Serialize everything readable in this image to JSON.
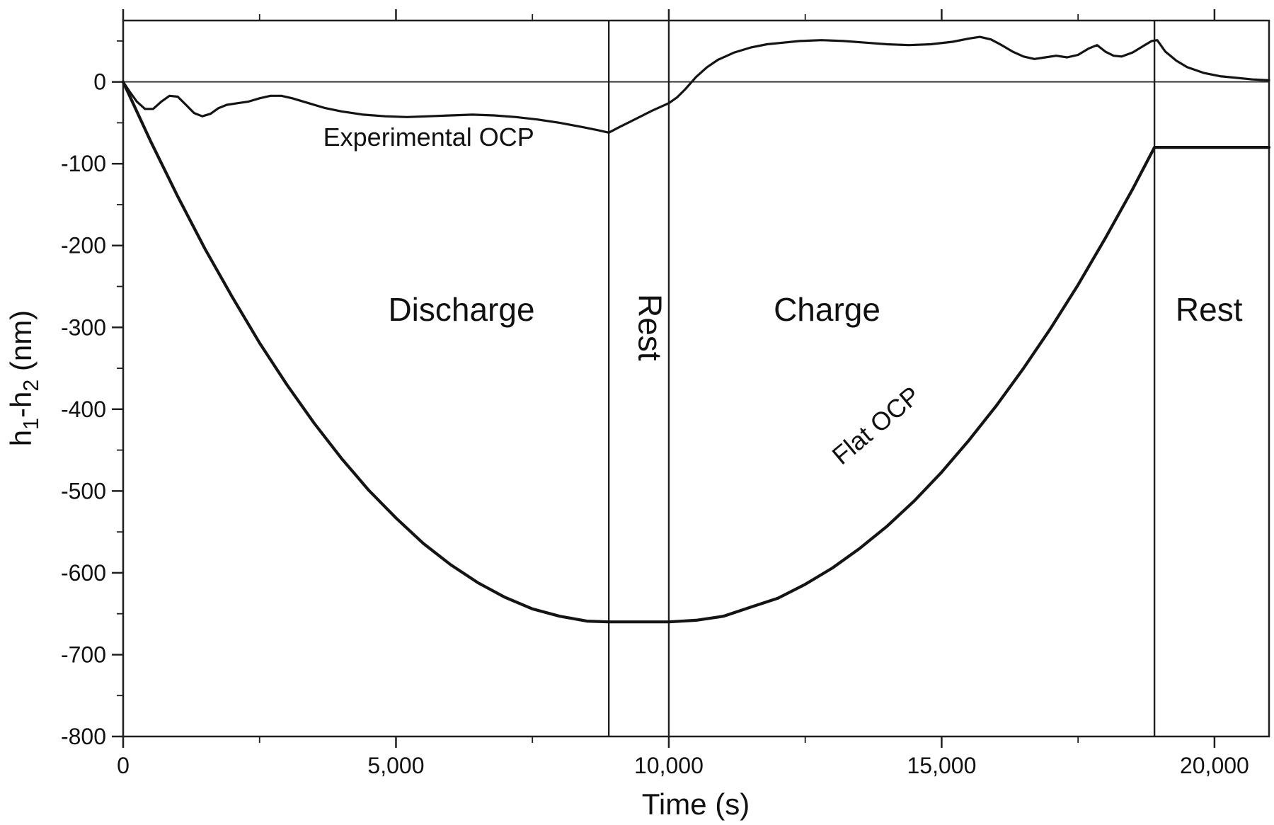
{
  "colors": {
    "line": "#141414",
    "frame": "#1f1f1f",
    "background": "#ffffff"
  },
  "chart_data": {
    "type": "line",
    "title": "",
    "xlabel": "Time (s)",
    "ylabel": "h1-h2 (nm)",
    "ylabel_rich": [
      [
        "h",
        false
      ],
      [
        "1",
        true
      ],
      [
        "-h",
        false
      ],
      [
        "2",
        true
      ],
      [
        " (nm)",
        false
      ]
    ],
    "xlim": [
      0,
      21000
    ],
    "ylim": [
      -800,
      75
    ],
    "grid": false,
    "legend": "none (inline curve labels)",
    "x_major_ticks": [
      0,
      5000,
      10000,
      15000,
      20000
    ],
    "x_tick_labels": [
      "0",
      "5,000",
      "10,000",
      "15,000",
      "20,000"
    ],
    "x_minor_step": 2500,
    "y_major_ticks": [
      0,
      -100,
      -200,
      -300,
      -400,
      -500,
      -600,
      -700,
      -800
    ],
    "y_tick_labels": [
      "0",
      "-100",
      "-200",
      "-300",
      "-400",
      "-500",
      "-600",
      "-700",
      "-800"
    ],
    "y_minor_step": 50,
    "zero_line_y": 0,
    "region_lines_x": [
      8900,
      10000,
      18900
    ],
    "annotations": [
      {
        "text": "Experimental OCP",
        "x": 5600,
        "y": -78,
        "rotate": 0,
        "kind": "curve"
      },
      {
        "text": "Discharge",
        "x": 6200,
        "y": -292,
        "rotate": 0,
        "kind": "region"
      },
      {
        "text": "Rest",
        "x": 9450,
        "y": -300,
        "rotate": 90,
        "kind": "region"
      },
      {
        "text": "Charge",
        "x": 12900,
        "y": -292,
        "rotate": 0,
        "kind": "region"
      },
      {
        "text": "Flat OCP",
        "x": 13900,
        "y": -428,
        "rotate": -40,
        "kind": "curve"
      },
      {
        "text": "Rest",
        "x": 19900,
        "y": -292,
        "rotate": 0,
        "kind": "region"
      }
    ],
    "series": [
      {
        "name": "Experimental OCP",
        "stroke_width": 3.2,
        "points": [
          [
            0,
            0
          ],
          [
            120,
            -12
          ],
          [
            250,
            -24
          ],
          [
            400,
            -33
          ],
          [
            550,
            -33
          ],
          [
            700,
            -24
          ],
          [
            850,
            -17
          ],
          [
            1000,
            -18
          ],
          [
            1150,
            -28
          ],
          [
            1300,
            -38
          ],
          [
            1450,
            -42
          ],
          [
            1600,
            -39
          ],
          [
            1750,
            -32
          ],
          [
            1900,
            -28
          ],
          [
            2100,
            -26
          ],
          [
            2300,
            -24
          ],
          [
            2500,
            -20
          ],
          [
            2700,
            -17
          ],
          [
            2900,
            -17
          ],
          [
            3100,
            -20
          ],
          [
            3400,
            -26
          ],
          [
            3700,
            -32
          ],
          [
            4000,
            -36
          ],
          [
            4400,
            -40
          ],
          [
            4800,
            -42
          ],
          [
            5200,
            -43
          ],
          [
            5600,
            -42
          ],
          [
            6000,
            -41
          ],
          [
            6400,
            -40
          ],
          [
            6800,
            -41
          ],
          [
            7200,
            -43
          ],
          [
            7600,
            -46
          ],
          [
            8000,
            -50
          ],
          [
            8400,
            -55
          ],
          [
            8700,
            -59
          ],
          [
            8900,
            -62
          ],
          [
            9100,
            -55
          ],
          [
            9400,
            -45
          ],
          [
            9700,
            -35
          ],
          [
            10000,
            -26
          ],
          [
            10150,
            -19
          ],
          [
            10300,
            -9
          ],
          [
            10500,
            6
          ],
          [
            10700,
            18
          ],
          [
            10900,
            27
          ],
          [
            11200,
            36
          ],
          [
            11500,
            42
          ],
          [
            11800,
            46
          ],
          [
            12100,
            48
          ],
          [
            12400,
            50
          ],
          [
            12800,
            51
          ],
          [
            13200,
            50
          ],
          [
            13600,
            48
          ],
          [
            14000,
            46
          ],
          [
            14400,
            45
          ],
          [
            14800,
            46
          ],
          [
            15200,
            49
          ],
          [
            15500,
            53
          ],
          [
            15700,
            55
          ],
          [
            15900,
            52
          ],
          [
            16100,
            45
          ],
          [
            16300,
            37
          ],
          [
            16500,
            31
          ],
          [
            16700,
            28
          ],
          [
            16900,
            30
          ],
          [
            17100,
            32
          ],
          [
            17300,
            30
          ],
          [
            17500,
            33
          ],
          [
            17700,
            41
          ],
          [
            17850,
            45
          ],
          [
            18000,
            37
          ],
          [
            18150,
            32
          ],
          [
            18300,
            31
          ],
          [
            18500,
            36
          ],
          [
            18700,
            44
          ],
          [
            18850,
            50
          ],
          [
            18950,
            51
          ],
          [
            19100,
            37
          ],
          [
            19300,
            26
          ],
          [
            19500,
            18
          ],
          [
            19800,
            11
          ],
          [
            20100,
            7
          ],
          [
            20400,
            5
          ],
          [
            20700,
            3
          ],
          [
            21000,
            2
          ]
        ]
      },
      {
        "name": "Flat OCP",
        "stroke_width": 4.2,
        "points": [
          [
            0,
            0
          ],
          [
            500,
            -72
          ],
          [
            1000,
            -140
          ],
          [
            1500,
            -204
          ],
          [
            2000,
            -263
          ],
          [
            2500,
            -319
          ],
          [
            3000,
            -370
          ],
          [
            3500,
            -417
          ],
          [
            4000,
            -460
          ],
          [
            4500,
            -499
          ],
          [
            5000,
            -533
          ],
          [
            5500,
            -564
          ],
          [
            6000,
            -590
          ],
          [
            6500,
            -612
          ],
          [
            7000,
            -630
          ],
          [
            7500,
            -644
          ],
          [
            8000,
            -653
          ],
          [
            8500,
            -659
          ],
          [
            8900,
            -660
          ],
          [
            10000,
            -660
          ],
          [
            10500,
            -658
          ],
          [
            11000,
            -653
          ],
          [
            11500,
            -642
          ],
          [
            12000,
            -631
          ],
          [
            12500,
            -614
          ],
          [
            13000,
            -594
          ],
          [
            13500,
            -570
          ],
          [
            14000,
            -543
          ],
          [
            14500,
            -512
          ],
          [
            15000,
            -477
          ],
          [
            15500,
            -438
          ],
          [
            16000,
            -396
          ],
          [
            16500,
            -350
          ],
          [
            17000,
            -301
          ],
          [
            17500,
            -248
          ],
          [
            18000,
            -191
          ],
          [
            18500,
            -131
          ],
          [
            18900,
            -80
          ],
          [
            19000,
            -80
          ],
          [
            21000,
            -80
          ]
        ]
      }
    ]
  }
}
